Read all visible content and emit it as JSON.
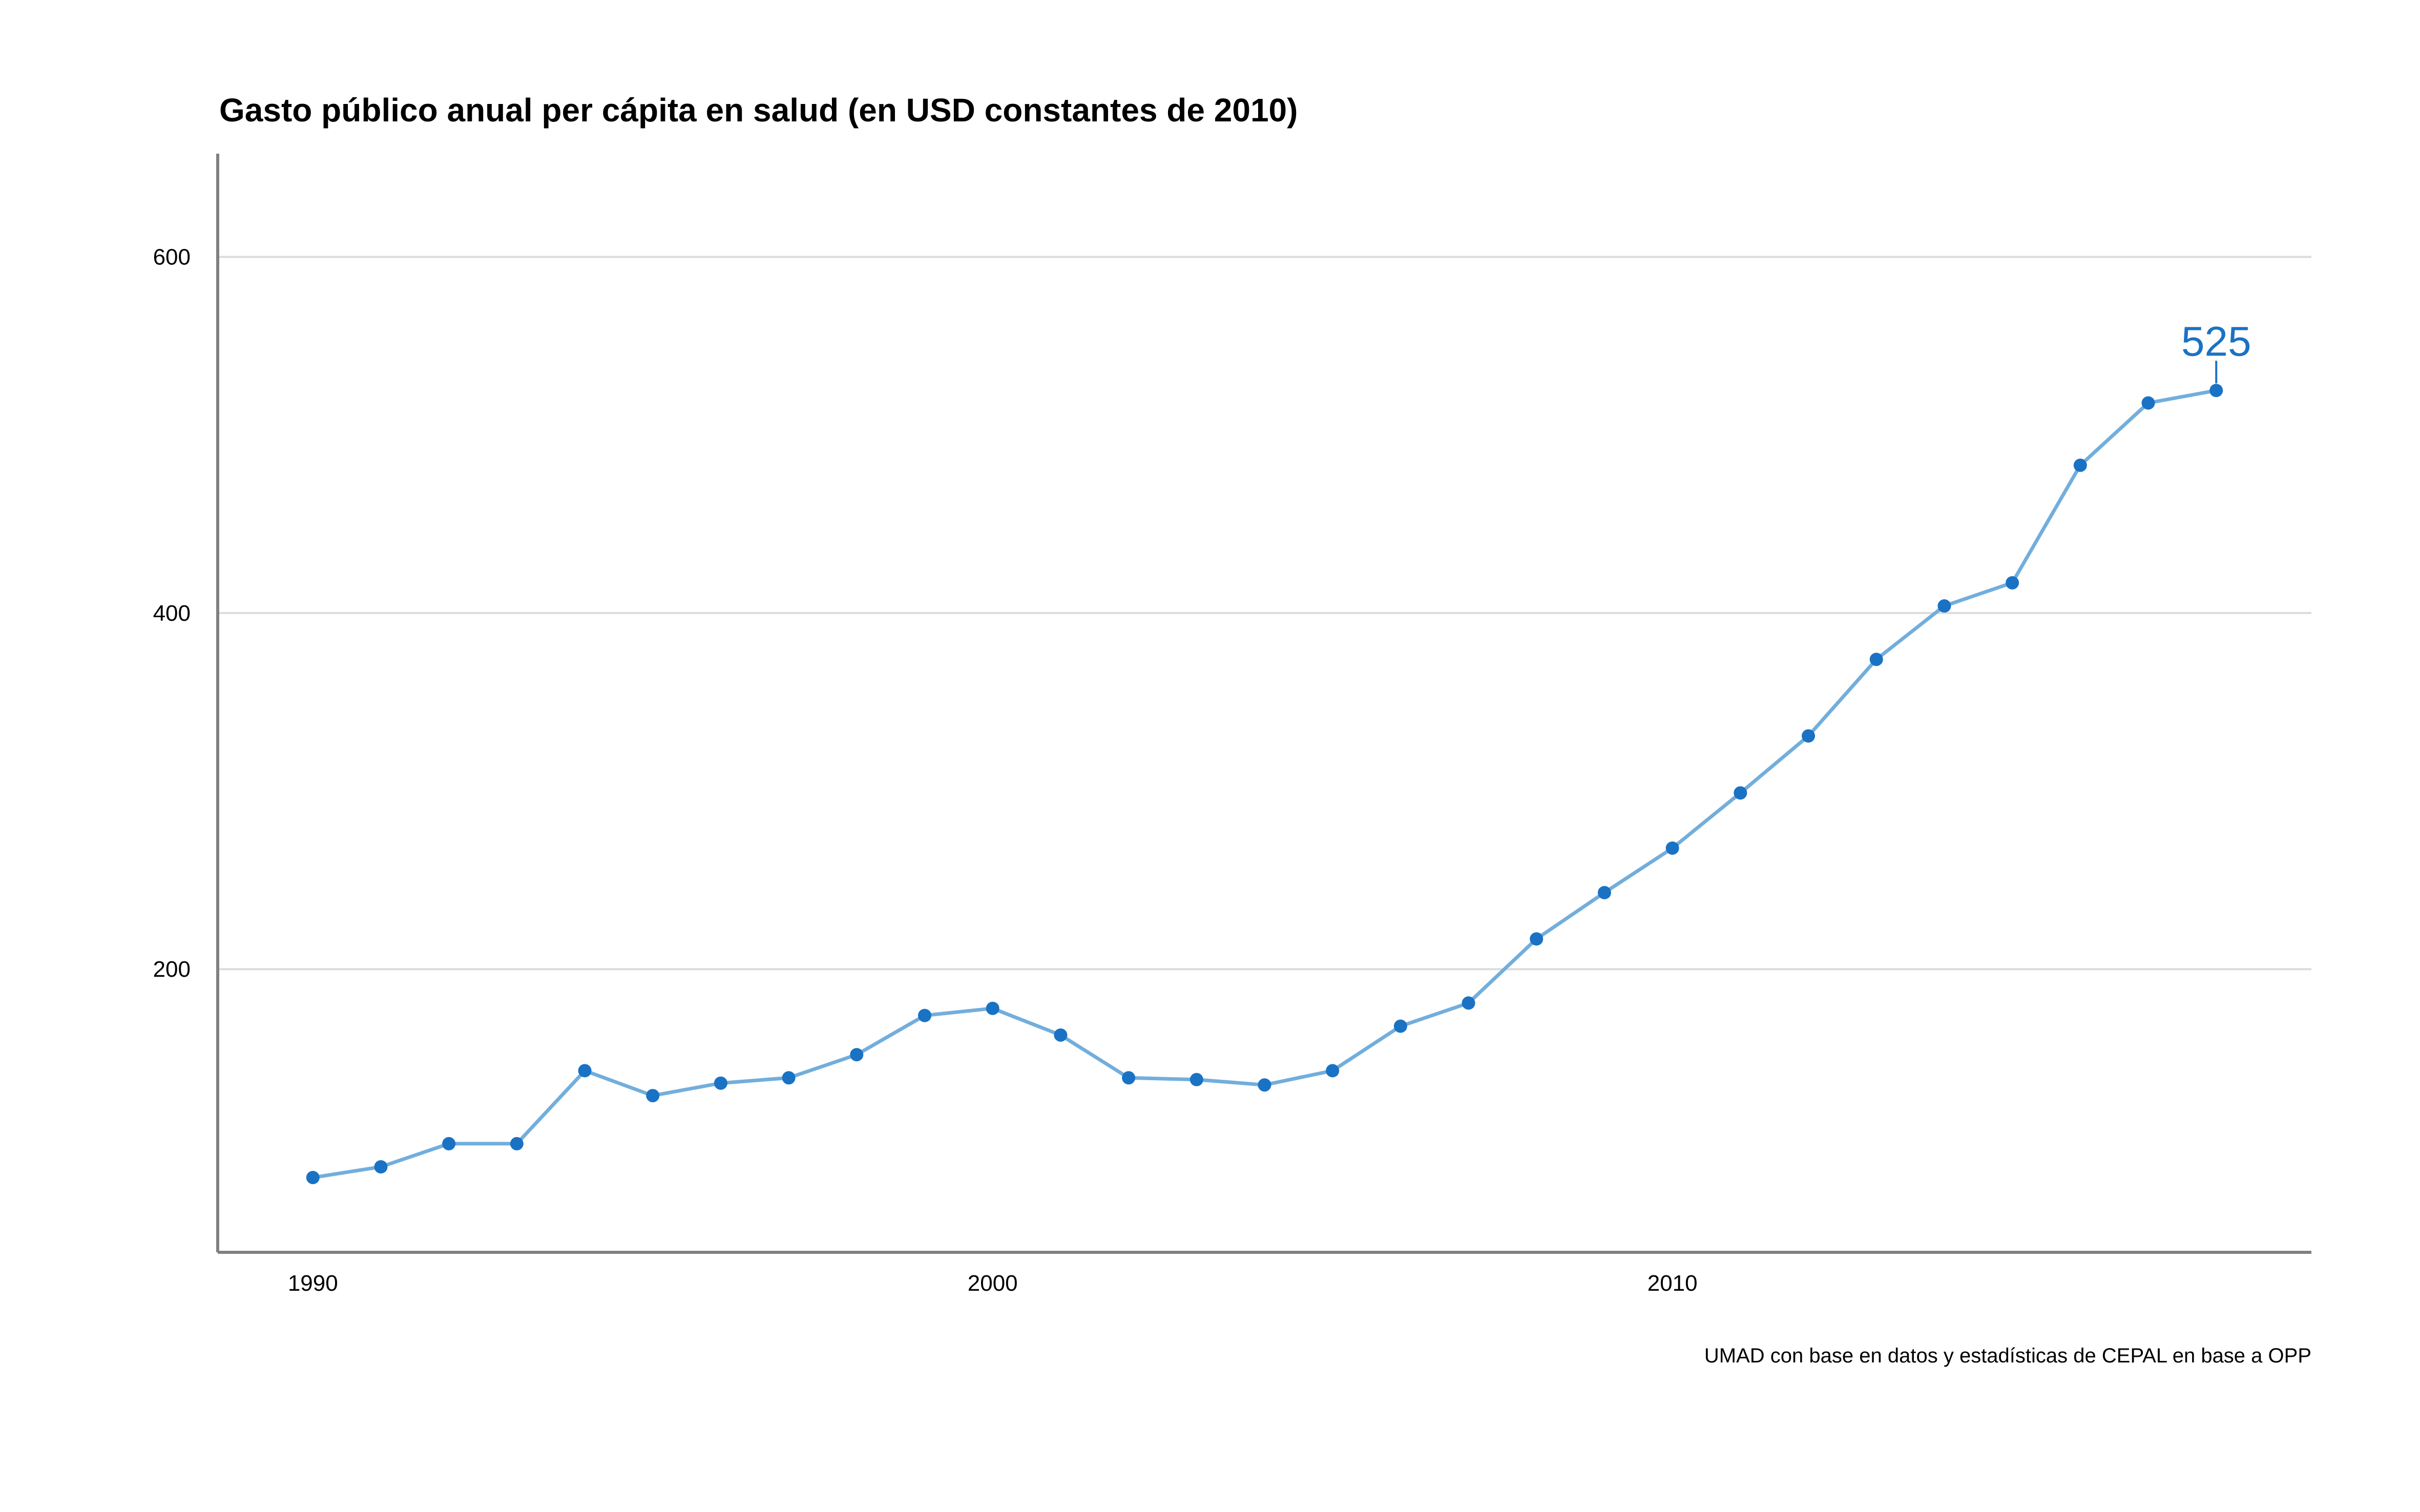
{
  "colors": {
    "line": "#72aedc",
    "point": "#1a72c4",
    "annotation": "#1a72c4",
    "grid": "#dcdcdc",
    "axis": "#808080"
  },
  "chart_data": {
    "type": "line",
    "title": "Gasto público anual per cápita en salud (en USD constantes de 2010)",
    "caption": "UMAD con base en datos y estadísticas de CEPAL en base a OPP",
    "xlabel": "",
    "ylabel": "",
    "xlim": [
      1988.6,
      2019.4
    ],
    "ylim": [
      41,
      658
    ],
    "x_ticks": [
      1990,
      2000,
      2010
    ],
    "y_ticks": [
      200,
      400,
      600
    ],
    "grid": {
      "horizontal": true,
      "vertical": false
    },
    "legend": "none",
    "x": [
      1990,
      1991,
      1992,
      1993,
      1994,
      1995,
      1996,
      1997,
      1998,
      1999,
      2000,
      2001,
      2002,
      2003,
      2004,
      2005,
      2006,
      2007,
      2008,
      2009,
      2010,
      2011,
      2012,
      2013,
      2014,
      2015,
      2016,
      2017,
      2018
    ],
    "values": [
      83,
      89,
      102,
      102,
      143,
      129,
      136,
      139,
      152,
      174,
      178,
      163,
      139,
      138,
      135,
      143,
      168,
      181,
      217,
      243,
      268,
      299,
      331,
      374,
      404,
      417,
      483,
      518,
      525
    ],
    "annotations": [
      {
        "x": 2018,
        "y": 525,
        "text": "525"
      }
    ]
  }
}
